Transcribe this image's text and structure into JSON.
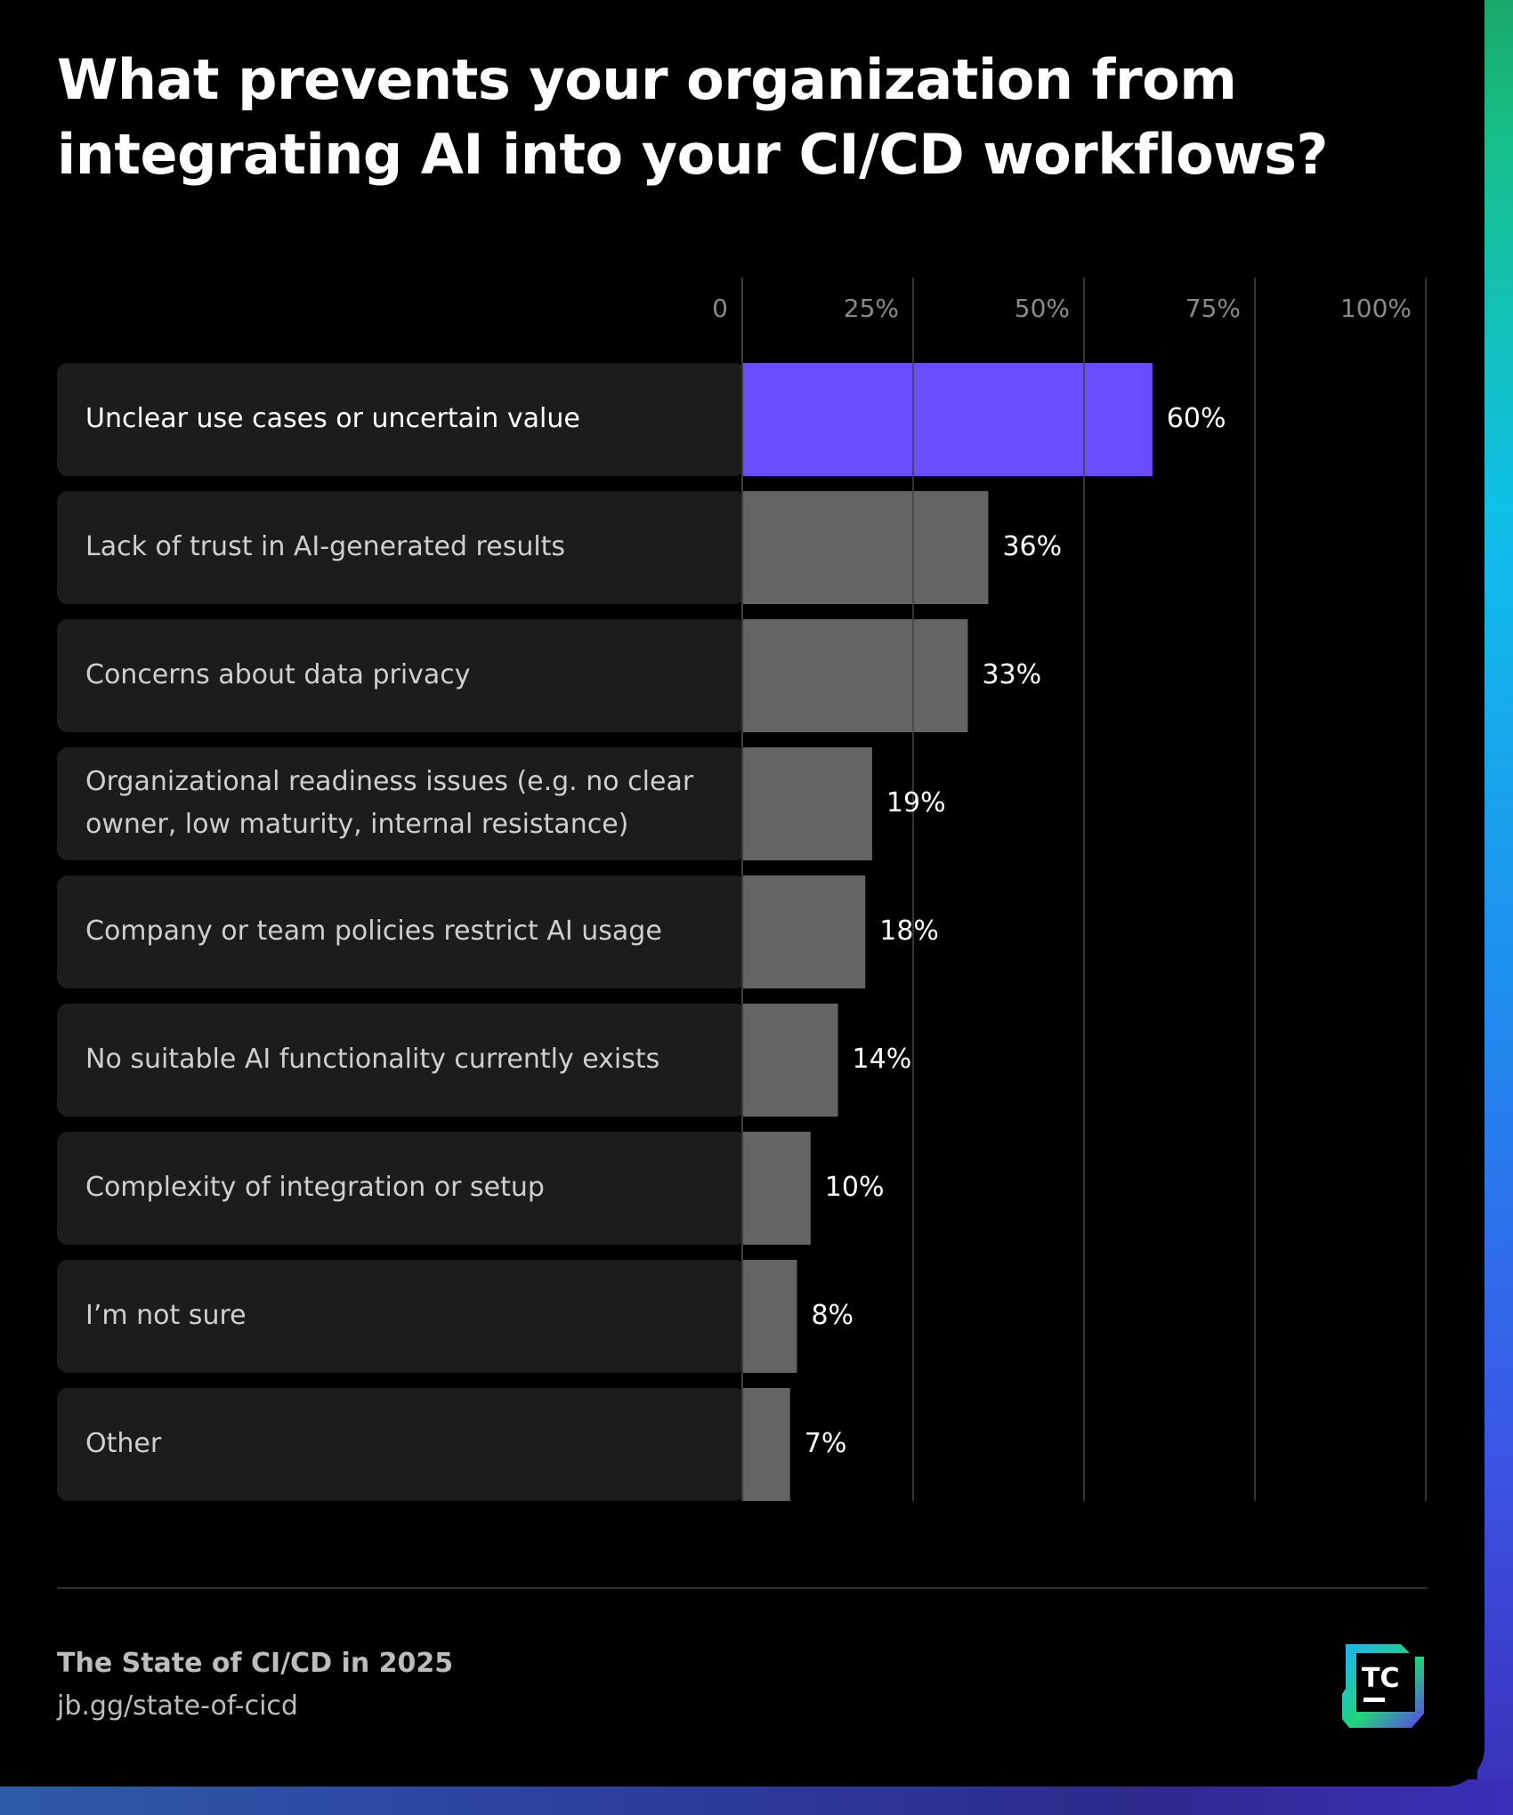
{
  "header": {
    "title_line1": "What prevents your organization from",
    "title_line2": "integrating AI into your CI/CD workflows?"
  },
  "chart_data": {
    "type": "bar",
    "orientation": "horizontal",
    "xlim": [
      0,
      100
    ],
    "ticks": [
      "0",
      "25%",
      "50%",
      "75%",
      "100%"
    ],
    "tick_values": [
      0,
      25,
      50,
      75,
      100
    ],
    "grid": true,
    "categories": [
      "Unclear use cases or uncertain value",
      "Lack of trust in AI-generated results",
      "Concerns about data privacy",
      "Organizational readiness issues (e.g. no clear owner, low maturity, internal resistance)",
      "Company or team policies restrict AI usage",
      "No suitable AI functionality currently exists",
      "Complexity of integration or setup",
      "I’m not sure",
      "Other"
    ],
    "category_lines": [
      [
        "Unclear use cases or uncertain value"
      ],
      [
        "Lack of trust in AI-generated results"
      ],
      [
        "Concerns about data privacy"
      ],
      [
        "Organizational readiness issues (e.g. no clear",
        "owner, low maturity, internal resistance)"
      ],
      [
        "Company or team policies restrict AI usage"
      ],
      [
        "No suitable AI functionality currently exists"
      ],
      [
        "Complexity of integration or setup"
      ],
      [
        "I’m not sure"
      ],
      [
        "Other"
      ]
    ],
    "values": [
      60,
      36,
      33,
      19,
      18,
      14,
      10,
      8,
      7
    ],
    "value_labels": [
      "60%",
      "36%",
      "33%",
      "19%",
      "18%",
      "14%",
      "10%",
      "8%",
      "7%"
    ],
    "highlight_index": 0,
    "colors": {
      "highlight": "#6b4cff",
      "bar": "#646464",
      "row_bg": "#1c1c1c",
      "grid": "#444444",
      "tick_text": "#8a8a8a",
      "label_text": "#cfcfcf",
      "highlight_label_text": "#ffffff",
      "value_text": "#ffffff"
    }
  },
  "footer": {
    "report_title": "The State of CI/CD in 2025",
    "link": "jb.gg/state-of-cicd",
    "logo_text": "TC"
  }
}
